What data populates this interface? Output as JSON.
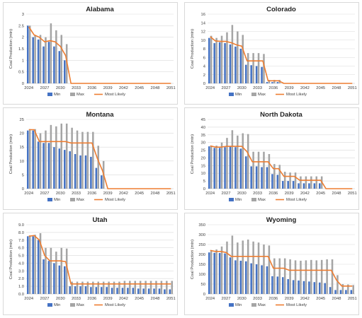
{
  "colors": {
    "min": "#4472C4",
    "max": "#A5A5A5",
    "most_likely": "#ED7D31",
    "grid": "#D9D9D9",
    "axis": "#BFBFBF"
  },
  "legend": {
    "min": "Min",
    "max": "Max",
    "most_likely": "Most Likely"
  },
  "chart_data": [
    {
      "type": "bar",
      "title": "Alabama",
      "ylabel": "Coal Production (mtn)",
      "ylim": [
        0,
        3
      ],
      "yticks": [
        "0",
        "0.5",
        "1",
        "1.5",
        "2",
        "2.5",
        "3"
      ],
      "ytick_values": [
        0,
        0.5,
        1,
        1.5,
        2,
        2.5,
        3
      ],
      "x": [
        2024,
        2025,
        2026,
        2027,
        2028,
        2029,
        2030,
        2031,
        2032,
        2033,
        2034,
        2035,
        2036,
        2037,
        2038,
        2039,
        2040,
        2041,
        2042,
        2043,
        2044,
        2045,
        2046,
        2047,
        2048,
        2049,
        2050,
        2051
      ],
      "xticks": [
        "2024",
        "2027",
        "2030",
        "2033",
        "2036",
        "2039",
        "2042",
        "2045",
        "2048",
        "2051"
      ],
      "series": [
        {
          "name": "Min",
          "values": [
            2.5,
            2.0,
            1.9,
            1.6,
            1.8,
            1.6,
            1.4,
            1.0,
            0,
            0,
            0,
            0,
            0,
            0,
            0,
            0,
            0,
            0,
            0,
            0,
            0,
            0,
            0,
            0,
            0,
            0,
            0,
            0
          ]
        },
        {
          "name": "Max",
          "values": [
            2.5,
            2.1,
            2.1,
            2.0,
            2.6,
            2.3,
            2.1,
            1.7,
            0,
            0,
            0,
            0,
            0,
            0,
            0,
            0,
            0,
            0,
            0,
            0,
            0,
            0,
            0,
            0,
            0,
            0,
            0,
            0
          ]
        },
        {
          "name": "Most Likely",
          "values": [
            2.45,
            2.1,
            2.0,
            1.8,
            1.85,
            1.8,
            1.6,
            1.2,
            0,
            0,
            0,
            0,
            0,
            0,
            0,
            0,
            0,
            0,
            0,
            0,
            0,
            0,
            0,
            0,
            0,
            0,
            0,
            0
          ]
        }
      ]
    },
    {
      "type": "bar",
      "title": "Colorado",
      "ylabel": "Coal Production (mtn)",
      "ylim": [
        0,
        16
      ],
      "yticks": [
        "0",
        "2",
        "4",
        "6",
        "8",
        "10",
        "12",
        "14",
        "16"
      ],
      "ytick_values": [
        0,
        2,
        4,
        6,
        8,
        10,
        12,
        14,
        16
      ],
      "x": [
        2024,
        2025,
        2026,
        2027,
        2028,
        2029,
        2030,
        2031,
        2032,
        2033,
        2034,
        2035,
        2036,
        2037,
        2038,
        2039,
        2040,
        2041,
        2042,
        2043,
        2044,
        2045,
        2046,
        2047,
        2048,
        2049,
        2050,
        2051
      ],
      "xticks": [
        "2024",
        "2027",
        "2030",
        "2033",
        "2036",
        "2039",
        "2042",
        "2045",
        "2048",
        "2051"
      ],
      "series": [
        {
          "name": "Min",
          "values": [
            10.5,
            9.3,
            9.5,
            9.3,
            9.0,
            8.5,
            8.0,
            4.3,
            4.2,
            4.0,
            3.8,
            0.3,
            0.3,
            0.3,
            0,
            0,
            0,
            0,
            0,
            0,
            0,
            0,
            0,
            0,
            0,
            0,
            0,
            0
          ]
        },
        {
          "name": "Max",
          "values": [
            11.0,
            10.5,
            11.0,
            11.8,
            13.5,
            12.0,
            11.2,
            7.0,
            7.0,
            7.0,
            6.8,
            0.8,
            0.8,
            0.8,
            0,
            0,
            0,
            0,
            0,
            0,
            0,
            0,
            0,
            0,
            0,
            0,
            0,
            0
          ]
        },
        {
          "name": "Most Likely",
          "values": [
            10.8,
            9.8,
            9.7,
            9.7,
            9.4,
            8.9,
            8.6,
            5.2,
            5.2,
            5.2,
            5.2,
            0.6,
            0.6,
            0.6,
            0,
            0,
            0,
            0,
            0,
            0,
            0,
            0,
            0,
            0,
            0,
            0,
            0,
            0
          ]
        }
      ]
    },
    {
      "type": "bar",
      "title": "Montana",
      "ylabel": "Coal Production (mtn)",
      "ylim": [
        0,
        25
      ],
      "yticks": [
        "0",
        "5",
        "10",
        "15",
        "20",
        "25"
      ],
      "ytick_values": [
        0,
        5,
        10,
        15,
        20,
        25
      ],
      "x": [
        2024,
        2025,
        2026,
        2027,
        2028,
        2029,
        2030,
        2031,
        2032,
        2033,
        2034,
        2035,
        2036,
        2037,
        2038,
        2039,
        2040,
        2041,
        2042,
        2043,
        2044,
        2045,
        2046,
        2047,
        2048,
        2049,
        2050,
        2051
      ],
      "xticks": [
        "2024",
        "2027",
        "2030",
        "2033",
        "2036",
        "2039",
        "2042",
        "2045",
        "2048",
        "2051"
      ],
      "series": [
        {
          "name": "Min",
          "values": [
            21.0,
            21.0,
            17.0,
            16.5,
            16.5,
            15.0,
            14.5,
            14.0,
            13.5,
            12.5,
            12.0,
            12.0,
            11.5,
            7.5,
            4.8,
            0,
            0,
            0,
            0,
            0,
            0,
            0,
            0,
            0,
            0,
            0,
            0,
            0
          ]
        },
        {
          "name": "Max",
          "values": [
            21.5,
            21.5,
            20.0,
            21.0,
            23.0,
            22.5,
            23.5,
            23.5,
            22.0,
            21.0,
            20.5,
            20.5,
            20.5,
            15.5,
            10.0,
            0,
            0,
            0,
            0,
            0,
            0,
            0,
            0,
            0,
            0,
            0,
            0,
            0
          ]
        },
        {
          "name": "Most Likely",
          "values": [
            21.3,
            21.3,
            17.0,
            17.0,
            17.0,
            17.0,
            17.0,
            17.0,
            16.5,
            16.5,
            16.5,
            16.5,
            16.5,
            11.0,
            6.5,
            0,
            0,
            0,
            0,
            0,
            0,
            0,
            0,
            0,
            0,
            0,
            0,
            0
          ]
        }
      ]
    },
    {
      "type": "bar",
      "title": "North Dakota",
      "ylabel": "Coal Production (mtn)",
      "ylim": [
        0,
        45
      ],
      "yticks": [
        "0",
        "5",
        "10",
        "15",
        "20",
        "25",
        "30",
        "35",
        "40",
        "45"
      ],
      "ytick_values": [
        0,
        5,
        10,
        15,
        20,
        25,
        30,
        35,
        40,
        45
      ],
      "x": [
        2024,
        2025,
        2026,
        2027,
        2028,
        2029,
        2030,
        2031,
        2032,
        2033,
        2034,
        2035,
        2036,
        2037,
        2038,
        2039,
        2040,
        2041,
        2042,
        2043,
        2044,
        2045,
        2046,
        2047,
        2048,
        2049,
        2050,
        2051
      ],
      "xticks": [
        "2024",
        "2027",
        "2030",
        "2033",
        "2036",
        "2039",
        "2042",
        "2045",
        "2048",
        "2051"
      ],
      "series": [
        {
          "name": "Min",
          "values": [
            27.5,
            26.5,
            26.5,
            27.0,
            27.5,
            27.0,
            26.0,
            21.0,
            14.5,
            14.5,
            14.0,
            14.0,
            9.5,
            9.0,
            5.0,
            5.0,
            5.0,
            3.5,
            3.5,
            3.5,
            3.5,
            3.5,
            0,
            0,
            0,
            0,
            0,
            0
          ]
        },
        {
          "name": "Max",
          "values": [
            28.0,
            28.0,
            30.0,
            33.0,
            38.0,
            34.5,
            36.0,
            35.5,
            24.0,
            24.0,
            24.0,
            22.5,
            16.0,
            15.5,
            11.0,
            10.5,
            10.5,
            8.0,
            8.0,
            8.0,
            8.0,
            8.0,
            0,
            0,
            0,
            0,
            0,
            0
          ]
        },
        {
          "name": "Most Likely",
          "values": [
            27.8,
            27.0,
            27.0,
            27.5,
            27.5,
            27.5,
            27.5,
            24.0,
            17.5,
            17.5,
            17.5,
            17.5,
            13.0,
            13.0,
            8.0,
            8.0,
            8.0,
            5.5,
            5.5,
            5.5,
            5.5,
            5.5,
            0,
            0,
            0,
            0,
            0,
            0
          ]
        }
      ]
    },
    {
      "type": "bar",
      "title": "Utah",
      "ylabel": "Coal Production (mtn)",
      "ylim": [
        0,
        9
      ],
      "yticks": [
        "0.0",
        "1.0",
        "2.0",
        "3.0",
        "4.0",
        "5.0",
        "6.0",
        "7.0",
        "8.0",
        "9.0"
      ],
      "ytick_values": [
        0,
        1,
        2,
        3,
        4,
        5,
        6,
        7,
        8,
        9
      ],
      "x": [
        2024,
        2025,
        2026,
        2027,
        2028,
        2029,
        2030,
        2031,
        2032,
        2033,
        2034,
        2035,
        2036,
        2037,
        2038,
        2039,
        2040,
        2041,
        2042,
        2043,
        2044,
        2045,
        2046,
        2047,
        2048,
        2049,
        2050,
        2051
      ],
      "xticks": [
        "2024",
        "2027",
        "2030",
        "2033",
        "2036",
        "2039",
        "2042",
        "2045",
        "2048",
        "2051"
      ],
      "series": [
        {
          "name": "Min",
          "values": [
            7.5,
            7.5,
            7.0,
            4.5,
            4.3,
            4.0,
            3.7,
            3.6,
            1.0,
            1.0,
            1.0,
            1.0,
            0.9,
            0.9,
            0.9,
            0.9,
            0.8,
            0.8,
            0.8,
            0.8,
            0.8,
            0.7,
            0.7,
            0.7,
            0.7,
            0.7,
            0.6,
            0.6
          ]
        },
        {
          "name": "Max",
          "values": [
            7.6,
            7.7,
            7.9,
            6.0,
            6.0,
            5.5,
            6.0,
            5.9,
            1.6,
            1.6,
            1.6,
            1.6,
            1.6,
            1.6,
            1.6,
            1.6,
            1.6,
            1.6,
            1.7,
            1.7,
            1.7,
            1.7,
            1.7,
            1.7,
            1.7,
            1.7,
            1.7,
            1.7
          ]
        },
        {
          "name": "Most Likely",
          "values": [
            7.5,
            7.6,
            7.0,
            5.0,
            4.3,
            4.3,
            4.3,
            4.2,
            1.3,
            1.3,
            1.3,
            1.3,
            1.3,
            1.3,
            1.3,
            1.3,
            1.3,
            1.3,
            1.3,
            1.3,
            1.3,
            1.3,
            1.3,
            1.3,
            1.3,
            1.3,
            1.3,
            1.3
          ]
        }
      ]
    },
    {
      "type": "bar",
      "title": "Wyoming",
      "ylabel": "Coal Production (mtn)",
      "ylim": [
        0,
        350
      ],
      "yticks": [
        "0",
        "50",
        "100",
        "150",
        "200",
        "250",
        "300",
        "350"
      ],
      "ytick_values": [
        0,
        50,
        100,
        150,
        200,
        250,
        300,
        350
      ],
      "x": [
        2024,
        2025,
        2026,
        2027,
        2028,
        2029,
        2030,
        2031,
        2032,
        2033,
        2034,
        2035,
        2036,
        2037,
        2038,
        2039,
        2040,
        2041,
        2042,
        2043,
        2044,
        2045,
        2046,
        2047,
        2048,
        2049,
        2050,
        2051
      ],
      "xticks": [
        "2024",
        "2027",
        "2030",
        "2033",
        "2036",
        "2039",
        "2042",
        "2045",
        "2048",
        "2051"
      ],
      "series": [
        {
          "name": "Min",
          "values": [
            210,
            208,
            207,
            205,
            185,
            170,
            168,
            165,
            155,
            150,
            145,
            140,
            90,
            88,
            85,
            75,
            70,
            68,
            65,
            63,
            60,
            58,
            55,
            35,
            20,
            20,
            20,
            20
          ]
        },
        {
          "name": "Max",
          "values": [
            222,
            225,
            240,
            265,
            295,
            260,
            270,
            275,
            265,
            260,
            250,
            245,
            180,
            180,
            180,
            175,
            170,
            168,
            170,
            172,
            170,
            172,
            175,
            175,
            95,
            50,
            48,
            45
          ]
        },
        {
          "name": "Most Likely",
          "values": [
            220,
            215,
            215,
            210,
            190,
            190,
            190,
            190,
            190,
            190,
            190,
            190,
            130,
            130,
            130,
            120,
            120,
            120,
            120,
            120,
            120,
            120,
            120,
            120,
            70,
            40,
            40,
            40
          ]
        }
      ]
    }
  ]
}
